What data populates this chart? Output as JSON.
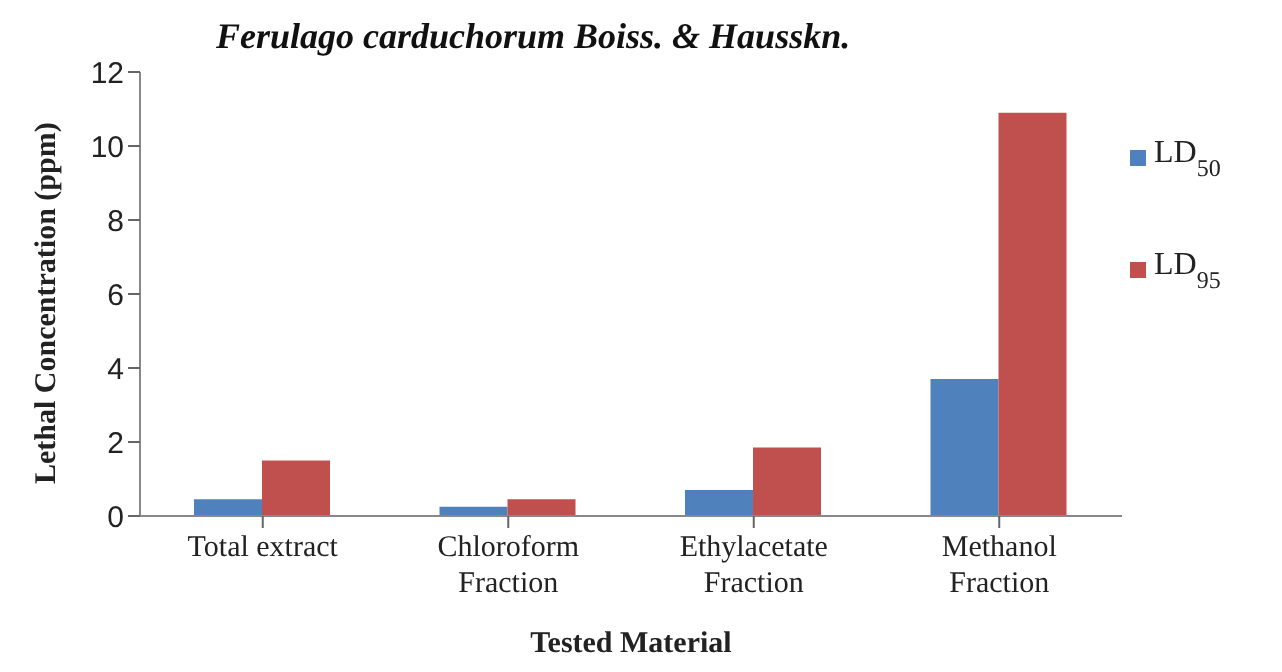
{
  "chart_data": {
    "type": "bar",
    "title": "Ferulago carduchorum Boiss. & Hausskn.",
    "xlabel": "Tested Material",
    "ylabel": "Lethal  Concentration  (ppm)",
    "categories": [
      "Total extract",
      "Chloroform Fraction",
      "Ethylacetate Fraction",
      "Methanol Fraction"
    ],
    "series": [
      {
        "name": "LD$_{50}$",
        "color": "#4f81bd",
        "values": [
          0.45,
          0.25,
          0.7,
          3.7
        ]
      },
      {
        "name": "LD$_{95}$",
        "color": "#c0504d",
        "values": [
          1.5,
          0.45,
          1.85,
          10.9
        ]
      }
    ],
    "ylim": [
      0,
      12
    ],
    "yticks": [
      0,
      2,
      4,
      6,
      8,
      10,
      12
    ],
    "grid": false,
    "legend": "right"
  }
}
